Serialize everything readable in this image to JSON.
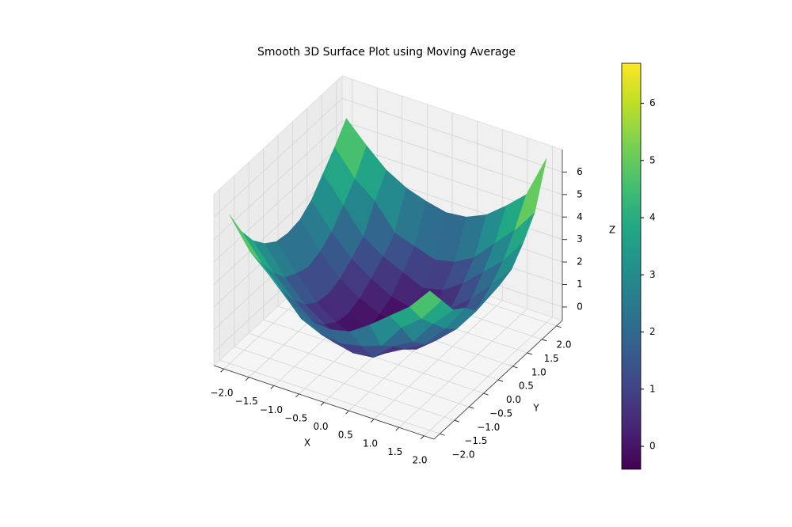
{
  "chart_data": {
    "type": "surface",
    "title": "Smooth 3D Surface Plot using Moving Average",
    "xlabel": "X",
    "ylabel": "Y",
    "zlabel": "Z",
    "x": [
      -2.0,
      -1.6,
      -1.2,
      -0.8,
      -0.4,
      0.0,
      0.4,
      0.8,
      1.2,
      1.6,
      2.0
    ],
    "y": [
      -2.0,
      -1.6,
      -1.2,
      -0.8,
      -0.4,
      0.0,
      0.4,
      0.8,
      1.2,
      1.6,
      2.0
    ],
    "z": [
      [
        6.0,
        4.7,
        3.9,
        3.0,
        2.5,
        2.4,
        2.6,
        3.2,
        3.9,
        4.6,
        5.6
      ],
      [
        4.8,
        3.7,
        2.8,
        1.8,
        1.4,
        1.3,
        1.5,
        1.8,
        2.9,
        3.6,
        4.7
      ],
      [
        3.9,
        2.8,
        1.9,
        1.2,
        0.6,
        0.4,
        0.5,
        1.3,
        1.8,
        2.9,
        3.8
      ],
      [
        3.3,
        2.1,
        1.2,
        0.6,
        0.1,
        -0.1,
        0.2,
        0.7,
        1.2,
        2.2,
        3.4
      ],
      [
        2.9,
        1.8,
        0.8,
        0.2,
        -0.2,
        -0.3,
        -0.1,
        0.2,
        0.9,
        1.7,
        2.8
      ],
      [
        2.8,
        1.6,
        0.7,
        0.1,
        -0.3,
        -0.4,
        -0.3,
        0.1,
        0.8,
        1.7,
        2.9
      ],
      [
        2.9,
        1.8,
        0.9,
        0.3,
        -0.1,
        -0.3,
        -0.2,
        0.3,
        0.9,
        1.8,
        3.0
      ],
      [
        3.3,
        2.2,
        1.3,
        0.7,
        0.2,
        0.0,
        0.1,
        0.6,
        1.3,
        2.2,
        3.2
      ],
      [
        4.0,
        2.9,
        1.8,
        1.2,
        0.8,
        0.4,
        0.6,
        1.2,
        2.0,
        2.8,
        3.9
      ],
      [
        4.7,
        3.6,
        2.9,
        1.8,
        1.5,
        1.2,
        1.4,
        1.9,
        2.8,
        3.7,
        4.8
      ],
      [
        5.5,
        4.6,
        3.8,
        3.3,
        3.0,
        2.8,
        2.9,
        3.3,
        4.0,
        4.8,
        6.7
      ]
    ],
    "xlim": [
      -2.2,
      2.2
    ],
    "ylim": [
      -2.2,
      2.2
    ],
    "zlim": [
      -0.6,
      7.0
    ],
    "xticks": [
      {
        "value": -2.0,
        "label": "−2.0"
      },
      {
        "value": -1.5,
        "label": "−1.5"
      },
      {
        "value": -1.0,
        "label": "−1.0"
      },
      {
        "value": -0.5,
        "label": "−0.5"
      },
      {
        "value": 0.0,
        "label": "0.0"
      },
      0.5,
      {
        "value": 1.0,
        "label": "1.0"
      },
      1.5,
      {
        "value": 2.0,
        "label": "2.0"
      }
    ],
    "yticks": [
      {
        "value": -2.0,
        "label": "−2.0"
      },
      {
        "value": -1.5,
        "label": "−1.5"
      },
      {
        "value": -1.0,
        "label": "−1.0"
      },
      {
        "value": -0.5,
        "label": "−0.5"
      },
      {
        "value": 0.0,
        "label": "0.0"
      },
      0.5,
      {
        "value": 1.0,
        "label": "1.0"
      },
      1.5,
      {
        "value": 2.0,
        "label": "2.0"
      }
    ],
    "zticks": [
      0,
      1,
      2,
      3,
      4,
      5,
      6
    ],
    "colormap": "viridis",
    "colorbar": {
      "lim": [
        -0.4,
        6.7
      ],
      "ticks": [
        0,
        1,
        2,
        3,
        4,
        5,
        6
      ]
    }
  }
}
